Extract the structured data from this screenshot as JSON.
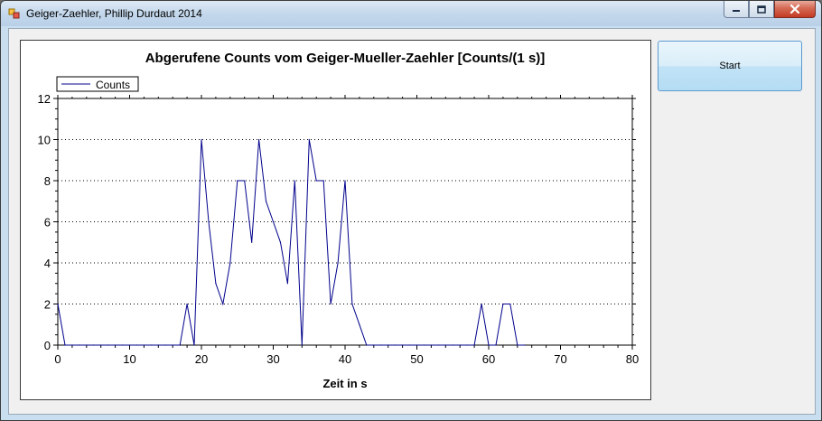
{
  "window": {
    "title": "Geiger-Zaehler, Phillip Durdaut 2014",
    "icon": "app-icon"
  },
  "start_button": {
    "label": "Start"
  },
  "chart_data": {
    "type": "line",
    "title": "Abgerufene Counts vom Geiger-Mueller-Zaehler [Counts/(1 s)]",
    "xlabel": "Zeit in s",
    "ylabel": "",
    "xlim": [
      0,
      80
    ],
    "ylim": [
      0,
      12
    ],
    "xticks": [
      0,
      10,
      20,
      30,
      40,
      50,
      60,
      70,
      80
    ],
    "yticks": [
      0,
      2,
      4,
      6,
      8,
      10,
      12
    ],
    "grid": "dotted",
    "legend": "top-left",
    "series": [
      {
        "name": "Counts",
        "color": "#00008b",
        "x": [
          0,
          1,
          2,
          3,
          4,
          5,
          6,
          7,
          8,
          9,
          10,
          11,
          12,
          13,
          14,
          15,
          16,
          17,
          18,
          19,
          20,
          21,
          22,
          23,
          24,
          25,
          26,
          27,
          28,
          29,
          30,
          31,
          32,
          33,
          34,
          35,
          36,
          37,
          38,
          39,
          40,
          41,
          42,
          43,
          44,
          45,
          46,
          47,
          48,
          49,
          50,
          51,
          52,
          53,
          54,
          55,
          56,
          57,
          58,
          59,
          60,
          61,
          62,
          63,
          64,
          65
        ],
        "y": [
          2,
          0,
          0,
          0,
          0,
          0,
          0,
          0,
          0,
          0,
          0,
          0,
          0,
          0,
          0,
          0,
          0,
          0,
          2,
          0,
          10,
          6,
          3,
          2,
          4,
          8,
          8,
          5,
          10,
          7,
          6,
          5,
          3,
          8,
          0,
          10,
          8,
          8,
          2,
          4,
          8,
          2,
          1,
          0,
          0,
          0,
          0,
          0,
          0,
          0,
          0,
          0,
          0,
          0,
          0,
          0,
          0,
          0,
          0,
          2,
          0,
          0,
          2,
          2,
          0,
          0
        ]
      }
    ]
  }
}
